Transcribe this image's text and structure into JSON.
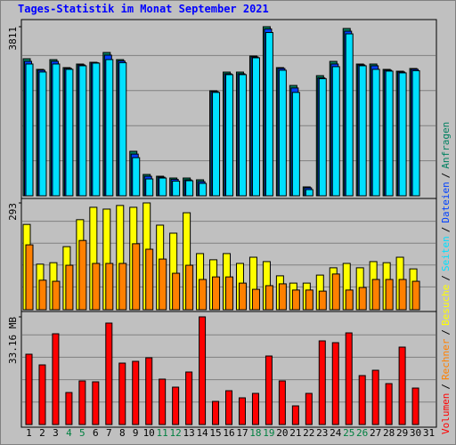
{
  "title": "Tages-Statistik im Monat September 2021",
  "legend_separator": "/",
  "weekend_color": "#008040",
  "weekend": [
    3,
    4,
    10,
    11,
    17,
    18,
    24,
    25
  ],
  "chart_data": [
    {
      "type": "bar",
      "ylim": [
        0,
        3811
      ],
      "yticks": [
        3811
      ],
      "series": [
        {
          "name": "Anfragen",
          "color": "#008060",
          "values": [
            3089,
            2849,
            3069,
            2889,
            2969,
            3009,
            3230,
            3069,
            1003,
            481,
            441,
            401,
            401,
            361,
            2367,
            2788,
            2788,
            3150,
            3811,
            2889,
            2487,
            201,
            2708,
            3029,
            3771,
            2969,
            2969,
            2849,
            2808,
            2869,
            null
          ]
        },
        {
          "name": "Dateien",
          "color": "#0040ff",
          "values": [
            3030,
            2830,
            3030,
            2870,
            2950,
            3000,
            3170,
            3040,
            940,
            440,
            420,
            370,
            360,
            320,
            2350,
            2750,
            2750,
            3130,
            3760,
            2870,
            2430,
            180,
            2660,
            2970,
            3710,
            2950,
            2930,
            2830,
            2790,
            2850,
            null
          ]
        },
        {
          "name": "Seiten",
          "color": "#00e0ff",
          "values": [
            2970,
            2790,
            2970,
            2850,
            2930,
            2990,
            3070,
            3000,
            860,
            380,
            400,
            330,
            340,
            280,
            2330,
            2730,
            2730,
            3110,
            3680,
            2830,
            2330,
            140,
            2640,
            2910,
            3650,
            2930,
            2850,
            2810,
            2770,
            2820,
            null
          ]
        }
      ]
    },
    {
      "type": "bar",
      "ylim": [
        0,
        293
      ],
      "yticks": [
        293
      ],
      "series": [
        {
          "name": "Besuche",
          "color": "#ffff00",
          "values": [
            234,
            125,
            129,
            173,
            247,
            281,
            276,
            286,
            281,
            293,
            232,
            210,
            266,
            154,
            137,
            154,
            127,
            144,
            132,
            93,
            73,
            73,
            95,
            115,
            127,
            115,
            132,
            129,
            144,
            112,
            null
          ]
        },
        {
          "name": "Rechner",
          "color": "#ff8000",
          "values": [
            178,
            81,
            78,
            122,
            190,
            127,
            127,
            127,
            181,
            166,
            139,
            100,
            122,
            83,
            90,
            90,
            73,
            56,
            66,
            71,
            54,
            54,
            51,
            98,
            54,
            61,
            83,
            83,
            83,
            78,
            null
          ]
        }
      ]
    },
    {
      "type": "bar",
      "ylim": [
        0,
        33.16
      ],
      "yticks": [
        {
          "value": 33.16,
          "label": "33.16 MB"
        }
      ],
      "categories": [
        "1",
        "2",
        "3",
        "4",
        "5",
        "6",
        "7",
        "8",
        "9",
        "10",
        "11",
        "12",
        "13",
        "14",
        "15",
        "16",
        "17",
        "18",
        "19",
        "20",
        "21",
        "22",
        "23",
        "24",
        "25",
        "26",
        "27",
        "28",
        "29",
        "30",
        "31"
      ],
      "series": [
        {
          "name": "Volumen",
          "color": "#ff0000",
          "values": [
            21.65,
            18.36,
            27.95,
            9.86,
            13.43,
            13.15,
            31.24,
            18.91,
            19.46,
            20.55,
            13.98,
            11.51,
            16.17,
            33.16,
            7.12,
            10.41,
            8.22,
            9.59,
            21.1,
            13.43,
            5.75,
            9.59,
            25.76,
            25.21,
            28.22,
            15.07,
            16.71,
            12.6,
            23.84,
            11.23,
            null
          ]
        }
      ]
    }
  ]
}
